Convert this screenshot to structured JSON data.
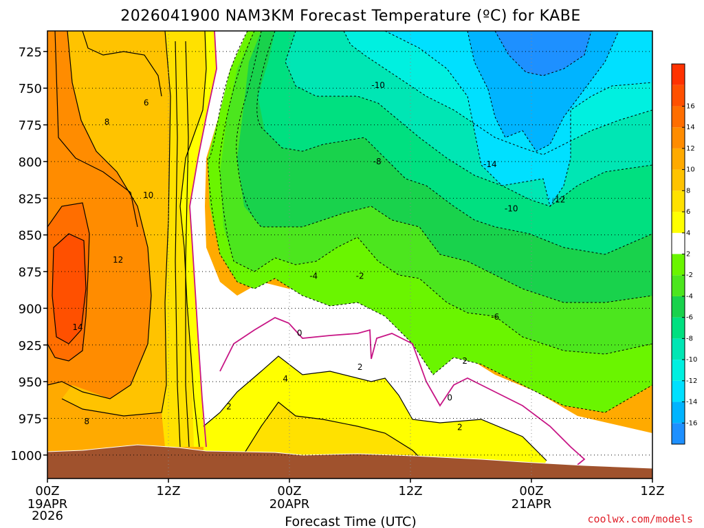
{
  "chart_data": {
    "type": "heatmap",
    "title": "2026041900 NAM3KM Forecast Temperature (ºC) for KABE",
    "xlabel": "Forecast Time (UTC)",
    "ylabel": "",
    "x_ticks": [
      {
        "hour": 0,
        "label": "00Z",
        "date": "19APR",
        "year": "2026"
      },
      {
        "hour": 12,
        "label": "12Z",
        "date": "",
        "year": ""
      },
      {
        "hour": 24,
        "label": "00Z",
        "date": "20APR",
        "year": ""
      },
      {
        "hour": 36,
        "label": "12Z",
        "date": "",
        "year": ""
      },
      {
        "hour": 48,
        "label": "00Z",
        "date": "21APR",
        "year": ""
      },
      {
        "hour": 60,
        "label": "12Z",
        "date": "",
        "year": ""
      }
    ],
    "xlim": [
      0,
      60
    ],
    "y_ticks": [
      725,
      750,
      775,
      800,
      825,
      850,
      875,
      900,
      925,
      950,
      975,
      1000
    ],
    "ylim": [
      711,
      1016
    ],
    "colorbar": {
      "levels": [
        -18,
        -16,
        -14,
        -12,
        -10,
        -8,
        -6,
        -4,
        -2,
        2,
        4,
        6,
        8,
        10,
        12,
        14,
        16,
        18
      ],
      "colors": [
        "#1e90ff",
        "#00b4ff",
        "#00e0ff",
        "#00f0e0",
        "#00e6b4",
        "#00e080",
        "#19d24c",
        "#4ce61e",
        "#6af500",
        "#ffffff",
        "#ffff00",
        "#ffe100",
        "#ffc300",
        "#ffaa00",
        "#ff8c00",
        "#ff6e00",
        "#ff5000",
        "#ff3200"
      ],
      "labels": [
        "-16",
        "-14",
        "-12",
        "-10",
        "-8",
        "-6",
        "-4",
        "-2",
        "2",
        "4",
        "6",
        "8",
        "10",
        "12",
        "14",
        "16"
      ]
    },
    "contour_labels": [
      {
        "text": "6",
        "hour": 9.8,
        "p": 760
      },
      {
        "text": "8",
        "hour": 5.9,
        "p": 773
      },
      {
        "text": "10",
        "hour": 10.0,
        "p": 823
      },
      {
        "text": "12",
        "hour": 7.0,
        "p": 867
      },
      {
        "text": "14",
        "hour": 3.0,
        "p": 913
      },
      {
        "text": "8",
        "hour": 3.9,
        "p": 977
      },
      {
        "text": "-10",
        "hour": 32.8,
        "p": 748
      },
      {
        "text": "-8",
        "hour": 32.7,
        "p": 800
      },
      {
        "text": "-14",
        "hour": 43.9,
        "p": 802
      },
      {
        "text": "-12",
        "hour": 50.7,
        "p": 826
      },
      {
        "text": "-10",
        "hour": 46.0,
        "p": 832
      },
      {
        "text": "-4",
        "hour": 26.4,
        "p": 878
      },
      {
        "text": "-2",
        "hour": 31.0,
        "p": 878
      },
      {
        "text": "-6",
        "hour": 44.4,
        "p": 906
      },
      {
        "text": "0",
        "hour": 25.0,
        "p": 917
      },
      {
        "text": "2",
        "hour": 31.0,
        "p": 940
      },
      {
        "text": "2",
        "hour": 41.4,
        "p": 936
      },
      {
        "text": "4",
        "hour": 23.6,
        "p": 948
      },
      {
        "text": "0",
        "hour": 39.9,
        "p": 961
      },
      {
        "text": "2",
        "hour": 18.0,
        "p": 967
      },
      {
        "text": "2",
        "hour": 40.9,
        "p": 981
      }
    ],
    "credit": "coolwx.com/models"
  }
}
